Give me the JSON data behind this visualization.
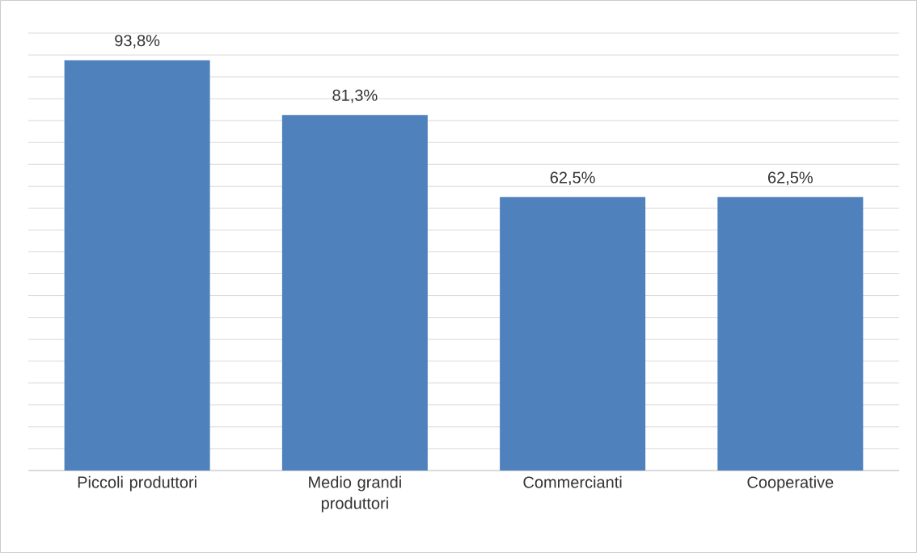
{
  "chart_data": {
    "type": "bar",
    "categories": [
      "Piccoli produttori",
      "Medio grandi produttori",
      "Commercianti",
      "Cooperative"
    ],
    "values": [
      93.8,
      81.3,
      62.5,
      62.5
    ],
    "value_labels": [
      "93,8%",
      "81,3%",
      "62,5%",
      "62,5%"
    ],
    "color": "#4f81bd",
    "grid": "y",
    "tick_labels": "x"
  }
}
